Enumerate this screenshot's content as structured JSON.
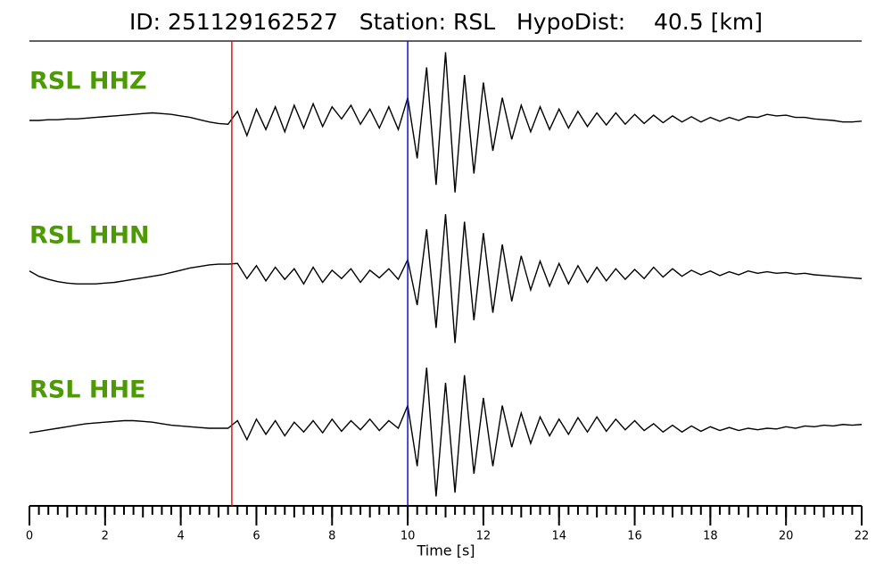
{
  "chart_data": {
    "type": "waveform",
    "title": "ID: 251129162527   Station: RSL   HypoDist:    40.5 [km]",
    "xlabel": "Time [s]",
    "xlim": [
      0,
      22
    ],
    "xticks": [
      0,
      2,
      4,
      6,
      8,
      10,
      12,
      14,
      16,
      18,
      20,
      22
    ],
    "xminor_step": 0.25,
    "xmedium_step": 1,
    "ylim": [
      -1,
      1
    ],
    "label_color": "#4e9a06",
    "picks": [
      {
        "x": 5.35,
        "color": "#e8140f"
      },
      {
        "x": 10.0,
        "color": "#1010d0"
      }
    ],
    "x": [
      0,
      0.25,
      0.5,
      0.75,
      1,
      1.25,
      1.5,
      1.75,
      2,
      2.25,
      2.5,
      2.75,
      3,
      3.25,
      3.5,
      3.75,
      4,
      4.25,
      4.5,
      4.75,
      5,
      5.25,
      5.5,
      5.75,
      6,
      6.25,
      6.5,
      6.75,
      7,
      7.25,
      7.5,
      7.75,
      8,
      8.25,
      8.5,
      8.75,
      9,
      9.25,
      9.5,
      9.75,
      10,
      10.25,
      10.5,
      10.75,
      11,
      11.25,
      11.5,
      11.75,
      12,
      12.25,
      12.5,
      12.75,
      13,
      13.25,
      13.5,
      13.75,
      14,
      14.25,
      14.5,
      14.75,
      15,
      15.25,
      15.5,
      15.75,
      16,
      16.25,
      16.5,
      16.75,
      17,
      17.25,
      17.5,
      17.75,
      18,
      18.25,
      18.5,
      18.75,
      19,
      19.25,
      19.5,
      19.75,
      20,
      20.25,
      20.5,
      20.75,
      21,
      21.25,
      21.5,
      21.75,
      22
    ],
    "series": [
      {
        "name": "RSL HHZ",
        "color": "#000000",
        "values": [
          0.0,
          0.0,
          0.01,
          0.01,
          0.02,
          0.02,
          0.03,
          0.04,
          0.05,
          0.06,
          0.07,
          0.08,
          0.09,
          0.1,
          0.09,
          0.08,
          0.06,
          0.04,
          0.01,
          -0.02,
          -0.04,
          -0.05,
          0.12,
          -0.2,
          0.15,
          -0.12,
          0.18,
          -0.15,
          0.2,
          -0.1,
          0.22,
          -0.08,
          0.18,
          0.02,
          0.2,
          -0.05,
          0.15,
          -0.1,
          0.18,
          -0.12,
          0.3,
          -0.5,
          0.7,
          -0.85,
          0.9,
          -0.95,
          0.6,
          -0.7,
          0.5,
          -0.4,
          0.3,
          -0.25,
          0.2,
          -0.15,
          0.18,
          -0.12,
          0.15,
          -0.1,
          0.12,
          -0.08,
          0.1,
          -0.06,
          0.1,
          -0.05,
          0.08,
          -0.04,
          0.07,
          -0.03,
          0.06,
          -0.02,
          0.05,
          -0.02,
          0.04,
          -0.01,
          0.04,
          0.0,
          0.05,
          0.04,
          0.08,
          0.06,
          0.07,
          0.04,
          0.04,
          0.02,
          0.01,
          0.0,
          -0.02,
          -0.02,
          -0.01
        ]
      },
      {
        "name": "RSL HHN",
        "color": "#000000",
        "values": [
          0.05,
          -0.02,
          -0.06,
          -0.09,
          -0.11,
          -0.12,
          -0.12,
          -0.12,
          -0.11,
          -0.1,
          -0.08,
          -0.06,
          -0.04,
          -0.02,
          0.0,
          0.03,
          0.06,
          0.09,
          0.11,
          0.13,
          0.14,
          0.14,
          0.15,
          -0.05,
          0.12,
          -0.08,
          0.1,
          -0.06,
          0.08,
          -0.12,
          0.1,
          -0.1,
          0.06,
          -0.05,
          0.08,
          -0.1,
          0.06,
          -0.04,
          0.08,
          -0.06,
          0.2,
          -0.4,
          0.6,
          -0.7,
          0.8,
          -0.9,
          0.7,
          -0.6,
          0.55,
          -0.5,
          0.4,
          -0.35,
          0.25,
          -0.2,
          0.18,
          -0.15,
          0.15,
          -0.12,
          0.12,
          -0.1,
          0.1,
          -0.08,
          0.08,
          -0.06,
          0.07,
          -0.05,
          0.1,
          -0.03,
          0.08,
          -0.02,
          0.06,
          0.0,
          0.05,
          -0.01,
          0.04,
          0.0,
          0.05,
          0.02,
          0.04,
          0.02,
          0.03,
          0.01,
          0.02,
          0.0,
          -0.01,
          -0.02,
          -0.03,
          -0.04,
          -0.05
        ]
      },
      {
        "name": "RSL HHE",
        "color": "#000000",
        "values": [
          -0.06,
          -0.04,
          -0.02,
          0.0,
          0.02,
          0.04,
          0.06,
          0.07,
          0.08,
          0.09,
          0.1,
          0.1,
          0.09,
          0.08,
          0.06,
          0.04,
          0.03,
          0.02,
          0.01,
          0.0,
          0.0,
          0.0,
          0.1,
          -0.15,
          0.12,
          -0.08,
          0.1,
          -0.1,
          0.08,
          -0.05,
          0.1,
          -0.06,
          0.12,
          -0.04,
          0.1,
          -0.02,
          0.12,
          -0.03,
          0.1,
          0.0,
          0.3,
          -0.5,
          0.8,
          -0.9,
          0.6,
          -0.85,
          0.7,
          -0.6,
          0.4,
          -0.5,
          0.3,
          -0.25,
          0.2,
          -0.2,
          0.15,
          -0.1,
          0.12,
          -0.08,
          0.14,
          -0.05,
          0.15,
          -0.04,
          0.12,
          -0.02,
          0.1,
          -0.03,
          0.06,
          -0.05,
          0.04,
          -0.05,
          0.03,
          -0.04,
          0.02,
          -0.03,
          0.01,
          -0.03,
          0.0,
          -0.02,
          0.0,
          -0.01,
          0.02,
          0.0,
          0.03,
          0.02,
          0.04,
          0.03,
          0.05,
          0.04,
          0.05
        ]
      }
    ]
  }
}
